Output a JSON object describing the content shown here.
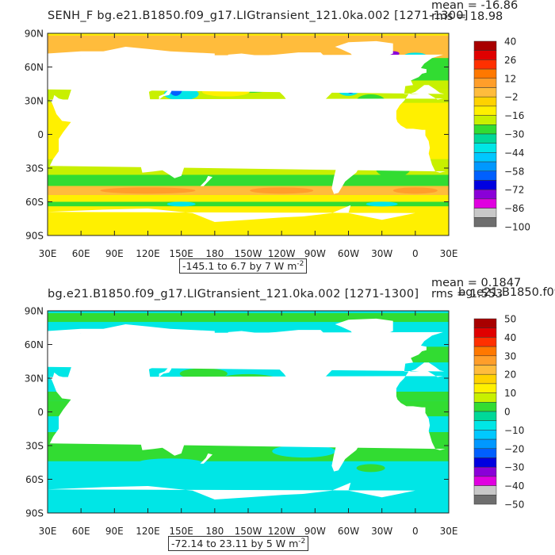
{
  "axes": {
    "lat_ticks": [
      "90N",
      "60N",
      "30N",
      "0",
      "30S",
      "60S",
      "90S"
    ],
    "lon_ticks": [
      "30E",
      "60E",
      "90E",
      "120E",
      "150E",
      "180",
      "150W",
      "120W",
      "90W",
      "60W",
      "30W",
      "0",
      "30E"
    ]
  },
  "panels": [
    {
      "title": "SENH_F bg.e21.B1850.f09_g17.LIGtransient_121.0ka.002 [1271-1300]",
      "mean_text": "mean = -16.86",
      "rms_text": "rms = 18.98",
      "range_text": "-145.1 to 6.7 by 7  W m",
      "units_exp": "-2"
    },
    {
      "title": "bg.e21.B1850.f09_g17.LIGtransient_121.0ka.002 [1271-1300]",
      "mean_text": "mean = 0.1847",
      "rms_text": "rms = 1.553",
      "overflow_text": "bg.e21.B1850.f09",
      "range_text": "-72.14 to 23.11 by 5  W m",
      "units_exp": "-2"
    }
  ],
  "chart_data": [
    {
      "type": "heatmap",
      "title": "SENH_F bg.e21.B1850.f09_g17.LIGtransient_121.0ka.002 [1271-1300]",
      "xlabel": "",
      "ylabel": "",
      "x_range": [
        "30E",
        "30E"
      ],
      "y_range": [
        "90S",
        "90N"
      ],
      "colorbar": {
        "labels": [
          40,
          26,
          12,
          -2,
          -16,
          -30,
          -44,
          -58,
          -72,
          -86,
          -100
        ],
        "colors": [
          "#a80000",
          "#e00000",
          "#ff3000",
          "#ff7800",
          "#ff9e2a",
          "#ffbc3c",
          "#ffd200",
          "#fff000",
          "#c8f000",
          "#32dc32",
          "#00d898",
          "#00e6e6",
          "#00c8ff",
          "#0098ff",
          "#0060ff",
          "#0000e0",
          "#8a00d8",
          "#e000e0",
          "#c8c8c8",
          "#6e6e6e"
        ]
      },
      "mean": -16.86,
      "rms": 18.98,
      "contour_range": "-145.1 to 6.7 by 7",
      "units": "W m-2"
    },
    {
      "type": "heatmap",
      "title": "bg.e21.B1850.f09_g17.LIGtransient_121.0ka.002 [1271-1300]",
      "xlabel": "",
      "ylabel": "",
      "x_range": [
        "30E",
        "30E"
      ],
      "y_range": [
        "90S",
        "90N"
      ],
      "colorbar": {
        "labels": [
          50,
          40,
          30,
          20,
          10,
          0,
          -10,
          -20,
          -30,
          -40,
          -50
        ],
        "colors": [
          "#a80000",
          "#e00000",
          "#ff3000",
          "#ff7800",
          "#ff9e2a",
          "#ffbc3c",
          "#ffd200",
          "#fff000",
          "#c8f000",
          "#32dc32",
          "#00d898",
          "#00e6e6",
          "#00c8ff",
          "#0098ff",
          "#0060ff",
          "#0000e0",
          "#8a00d8",
          "#e000e0",
          "#c8c8c8",
          "#6e6e6e"
        ]
      },
      "mean": 0.1847,
      "rms": 1.553,
      "contour_range": "-72.14 to 23.11 by 5",
      "units": "W m-2"
    }
  ]
}
